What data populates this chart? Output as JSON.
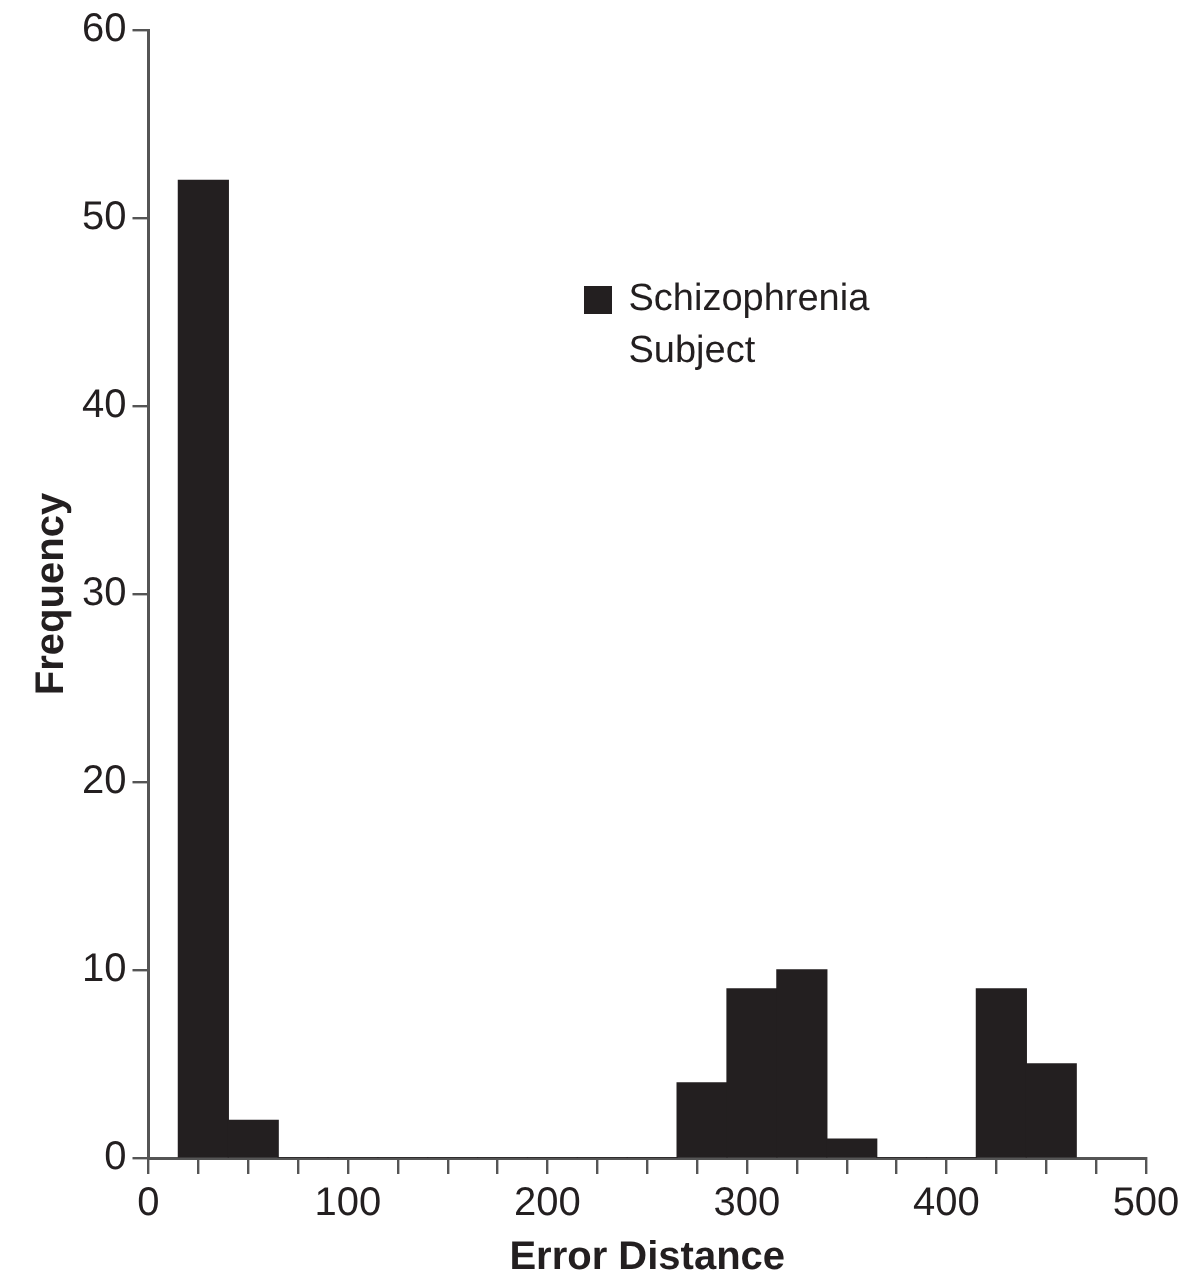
{
  "chart_data": {
    "type": "histogram",
    "xlabel": "Error Distance",
    "ylabel": "Frequency",
    "bins": [
      15,
      40,
      65,
      90,
      115,
      140,
      165,
      190,
      215,
      240,
      265,
      290,
      315,
      340,
      365,
      390,
      415,
      440,
      465
    ],
    "series": [
      {
        "name": "Schizophrenia Subject",
        "color": "#231f20",
        "values": [
          52,
          2,
          0,
          0,
          0,
          0,
          0,
          0,
          0,
          0,
          4,
          9,
          10,
          1,
          0,
          0,
          9,
          5
        ]
      }
    ],
    "xlim": [
      0,
      500
    ],
    "xticks": [
      0,
      {
        "value": 25,
        "label": null
      },
      {
        "value": 50,
        "label": null
      },
      {
        "value": 75,
        "label": null
      },
      100,
      {
        "value": 125,
        "label": null
      },
      {
        "value": 150,
        "label": null
      },
      {
        "value": 175,
        "label": null
      },
      200,
      {
        "value": 225,
        "label": null
      },
      {
        "value": 250,
        "label": null
      },
      {
        "value": 275,
        "label": null
      },
      300,
      {
        "value": 325,
        "label": null
      },
      {
        "value": 350,
        "label": null
      },
      {
        "value": 375,
        "label": null
      },
      400,
      {
        "value": 425,
        "label": null
      },
      {
        "value": 450,
        "label": null
      },
      {
        "value": 475,
        "label": null
      },
      500
    ],
    "ylim": [
      0,
      60
    ],
    "yticks": [
      0,
      10,
      20,
      30,
      40,
      50,
      60
    ],
    "grid": false,
    "legend": "top right"
  }
}
